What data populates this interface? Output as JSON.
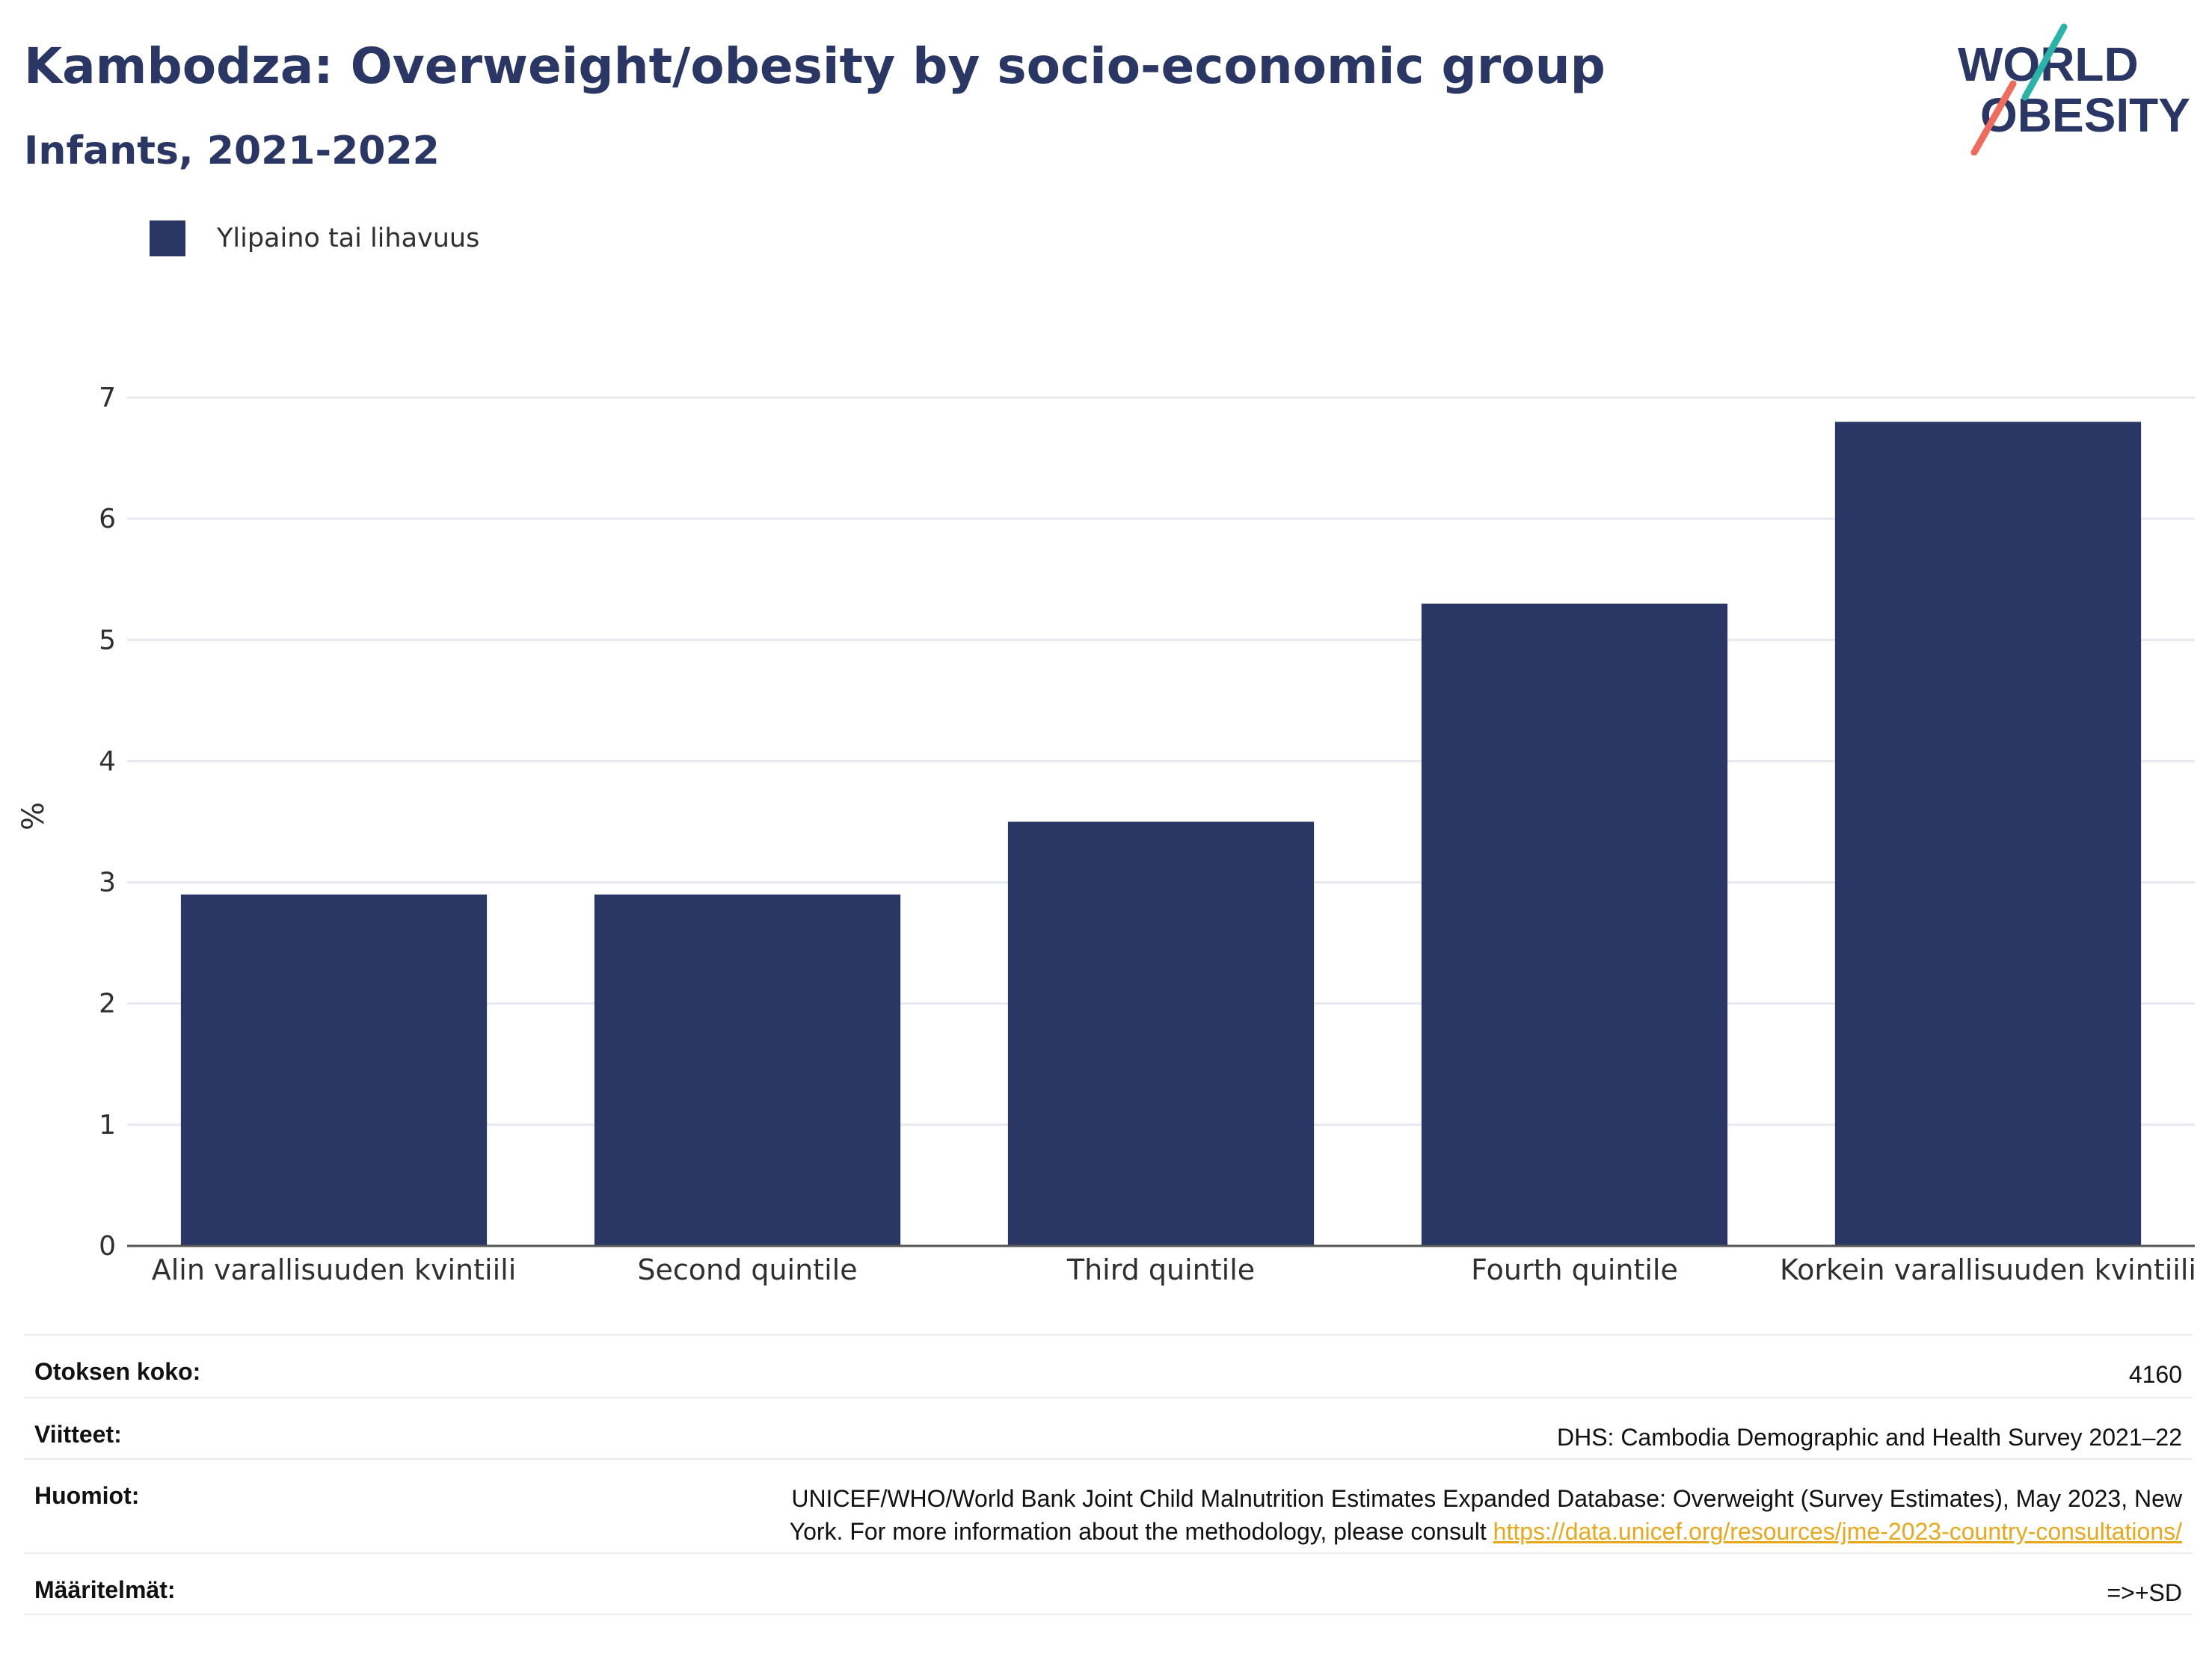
{
  "header": {
    "title": "Kambodza: Overweight/obesity by socio-economic group",
    "subtitle": "Infants, 2021-2022"
  },
  "logo": {
    "line1": "WORLD",
    "line2": "OBESITY"
  },
  "colors": {
    "bar": "#2a3664",
    "title": "#2a3664",
    "grid": "#e6e9f0",
    "link": "#e8a81c",
    "logo_teal": "#2bb3a9",
    "logo_coral": "#ef6b5b"
  },
  "chart_data": {
    "type": "bar",
    "categories": [
      "Alin varallisuuden kvintiili",
      "Second quintile",
      "Third quintile",
      "Fourth quintile",
      "Korkein varallisuuden kvintiili"
    ],
    "series": [
      {
        "name": "Ylipaino tai lihavuus",
        "values": [
          2.9,
          2.9,
          3.5,
          5.3,
          6.8
        ]
      }
    ],
    "xlabel": "",
    "ylabel": "%",
    "ylim": [
      0,
      7
    ],
    "yticks": [
      0,
      1,
      2,
      3,
      4,
      5,
      6,
      7
    ],
    "grid": true,
    "legend": "top-left"
  },
  "meta": {
    "sample_label": "Otoksen koko:",
    "sample_value": "4160",
    "refs_label": "Viitteet:",
    "refs_value": "DHS: Cambodia Demographic and Health Survey 2021–22",
    "notes_label": "Huomiot:",
    "notes_line1": "UNICEF/WHO/World Bank Joint Child Malnutrition Estimates Expanded Database: Overweight (Survey Estimates), May 2023, New",
    "notes_line2_prefix": "York. For more information about the methodology, please consult ",
    "notes_link": "https://data.unicef.org/resources/jme-2023-country-consultations/",
    "defs_label": "Määritelmät:",
    "defs_value": "=>+SD"
  }
}
